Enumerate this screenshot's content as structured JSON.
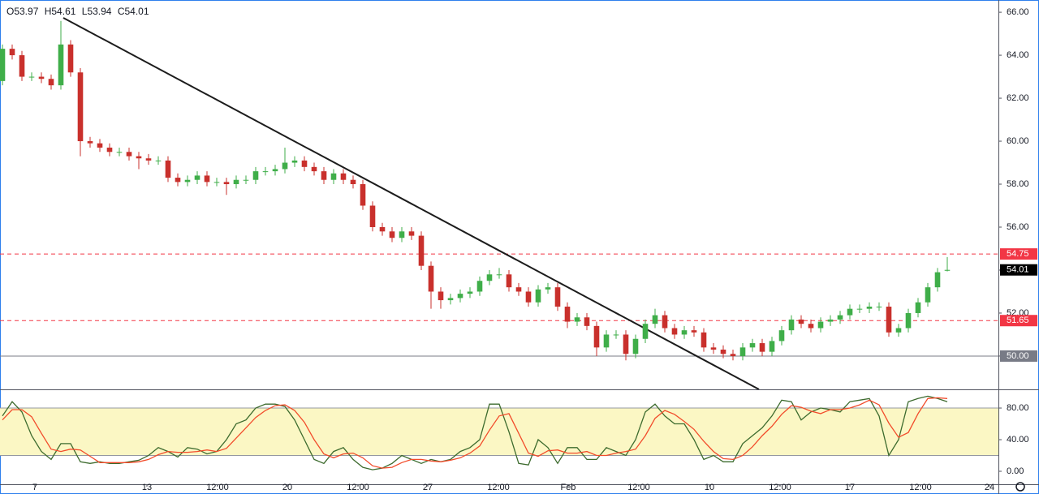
{
  "chart_data": {
    "type": "candlestick",
    "header": [
      "O53.97",
      "H54.61",
      "L53.94",
      "C54.01"
    ],
    "up_color": "#3fae49",
    "down_color": "#c9302c",
    "open": [
      62.8,
      64.3,
      64.0,
      63.0,
      63.0,
      62.9,
      62.6,
      64.5,
      63.2,
      60.0,
      59.9,
      59.7,
      59.5,
      59.5,
      59.3,
      59.2,
      59.1,
      59.1,
      58.3,
      58.1,
      58.2,
      58.4,
      58.1,
      58.1,
      58.0,
      58.2,
      58.2,
      58.6,
      58.6,
      58.7,
      59.0,
      59.1,
      58.8,
      58.6,
      58.2,
      58.5,
      58.2,
      58.0,
      57.0,
      56.0,
      55.8,
      55.5,
      55.8,
      55.6,
      54.2,
      53.0,
      52.6,
      52.7,
      52.9,
      53.0,
      53.5,
      53.8,
      53.8,
      53.2,
      53.0,
      52.5,
      53.1,
      53.2,
      52.3,
      51.6,
      51.8,
      51.4,
      50.4,
      51.0,
      51.0,
      50.1,
      50.8,
      51.5,
      51.9,
      51.3,
      51.0,
      51.2,
      51.1,
      50.4,
      50.3,
      50.1,
      50.0,
      50.4,
      50.6,
      50.2,
      50.7,
      51.2,
      51.7,
      51.5,
      51.3,
      51.6,
      51.7,
      51.9,
      52.2,
      52.2,
      52.3,
      52.3,
      51.1,
      51.3,
      52.0,
      52.5,
      53.2,
      53.97
    ],
    "high": [
      64.5,
      64.5,
      64.2,
      63.2,
      63.2,
      63.1,
      65.6,
      64.7,
      63.4,
      60.2,
      60.1,
      59.9,
      59.7,
      59.7,
      59.5,
      59.4,
      59.3,
      59.3,
      58.5,
      58.4,
      58.6,
      58.6,
      58.3,
      58.3,
      58.4,
      58.4,
      58.8,
      58.8,
      58.9,
      59.7,
      59.3,
      59.3,
      59.0,
      58.8,
      58.7,
      58.7,
      58.4,
      58.2,
      57.2,
      56.2,
      56.0,
      56.0,
      56.0,
      55.8,
      54.4,
      53.2,
      52.9,
      53.1,
      53.2,
      53.7,
      54.0,
      54.1,
      54.0,
      53.4,
      53.2,
      53.3,
      53.4,
      53.4,
      52.5,
      52.0,
      52.0,
      51.6,
      51.2,
      51.2,
      51.2,
      51.0,
      51.7,
      52.2,
      52.1,
      51.5,
      51.4,
      51.4,
      51.3,
      50.6,
      50.5,
      50.3,
      50.6,
      50.8,
      50.8,
      50.9,
      51.4,
      51.9,
      51.9,
      51.7,
      51.8,
      51.9,
      52.1,
      52.4,
      52.4,
      52.5,
      52.5,
      52.5,
      51.5,
      52.2,
      52.7,
      53.4,
      54.1,
      54.61
    ],
    "low": [
      62.6,
      63.8,
      62.8,
      62.8,
      62.7,
      62.4,
      62.4,
      63.0,
      59.3,
      59.7,
      59.5,
      59.3,
      59.3,
      59.1,
      58.7,
      58.9,
      58.9,
      58.1,
      57.9,
      57.9,
      58.0,
      57.9,
      57.9,
      57.5,
      57.8,
      58.0,
      58.0,
      58.4,
      58.4,
      58.5,
      58.8,
      58.6,
      58.4,
      58.0,
      58.0,
      58.0,
      57.8,
      56.8,
      55.8,
      55.6,
      55.3,
      55.3,
      55.4,
      54.0,
      52.2,
      52.2,
      52.4,
      52.5,
      52.7,
      52.8,
      53.3,
      53.6,
      53.0,
      52.8,
      52.3,
      52.3,
      52.9,
      52.1,
      51.3,
      51.4,
      51.2,
      50.0,
      50.2,
      50.8,
      49.8,
      49.9,
      50.6,
      51.3,
      51.1,
      50.8,
      50.8,
      50.9,
      50.2,
      50.1,
      49.9,
      49.8,
      49.8,
      50.2,
      50.0,
      50.0,
      50.5,
      51.0,
      51.3,
      51.1,
      51.1,
      51.4,
      51.5,
      51.7,
      52.0,
      52.0,
      52.1,
      50.9,
      50.9,
      51.1,
      51.8,
      52.3,
      53.0,
      53.94
    ],
    "close": [
      64.3,
      64.0,
      63.0,
      63.0,
      62.9,
      62.6,
      64.5,
      63.2,
      60.0,
      59.9,
      59.7,
      59.5,
      59.5,
      59.3,
      59.2,
      59.1,
      59.1,
      58.3,
      58.1,
      58.2,
      58.4,
      58.1,
      58.1,
      58.0,
      58.2,
      58.2,
      58.6,
      58.6,
      58.7,
      59.0,
      59.1,
      58.8,
      58.6,
      58.2,
      58.5,
      58.2,
      58.0,
      57.0,
      56.0,
      55.8,
      55.5,
      55.8,
      55.6,
      54.2,
      53.0,
      52.6,
      52.7,
      52.9,
      53.0,
      53.5,
      53.8,
      53.8,
      53.2,
      53.0,
      52.5,
      53.1,
      53.2,
      52.3,
      51.6,
      51.8,
      51.4,
      50.4,
      51.0,
      51.0,
      50.1,
      50.8,
      51.5,
      51.9,
      51.3,
      51.0,
      51.2,
      51.1,
      50.4,
      50.3,
      50.1,
      50.0,
      50.4,
      50.6,
      50.2,
      50.7,
      51.2,
      51.7,
      51.5,
      51.3,
      51.6,
      51.7,
      51.9,
      52.2,
      52.2,
      52.3,
      52.3,
      51.1,
      51.3,
      52.0,
      52.5,
      53.2,
      53.9,
      54.01
    ],
    "xlim": [
      -0.25,
      102.25
    ],
    "xticks": [
      {
        "value": 3.33,
        "label": "7"
      },
      {
        "value": 14.83,
        "label": "13"
      },
      {
        "value": 22.08,
        "label": "12:00"
      },
      {
        "value": 29.25,
        "label": "20"
      },
      {
        "value": 36.5,
        "label": "12:00"
      },
      {
        "value": 43.67,
        "label": "27"
      },
      {
        "value": 50.92,
        "label": "12:00"
      },
      {
        "value": 58.08,
        "label": "Feb"
      },
      {
        "value": 65.33,
        "label": "12:00"
      },
      {
        "value": 72.58,
        "label": "10"
      },
      {
        "value": 79.83,
        "label": "12:00"
      },
      {
        "value": 87.0,
        "label": "17"
      },
      {
        "value": 94.25,
        "label": "12:00"
      },
      {
        "value": 101.33,
        "label": "24"
      }
    ],
    "ylim": [
      48.45,
      66.57
    ],
    "yticks": [
      {
        "value": 50,
        "label": "50.00"
      },
      {
        "value": 52,
        "label": "52.00"
      },
      {
        "value": 54,
        "label": "54.00"
      },
      {
        "value": 56,
        "label": "56.00"
      },
      {
        "value": 58,
        "label": "58.00"
      },
      {
        "value": 60,
        "label": "60.00"
      },
      {
        "value": 62,
        "label": "62.00"
      },
      {
        "value": 64,
        "label": "64.00"
      },
      {
        "value": 66,
        "label": "66.00"
      }
    ],
    "trendline": {
      "x": [
        6.25,
        77.67
      ],
      "y": [
        65.74,
        48.45
      ],
      "color": "#1c1c1c"
    },
    "levels": [
      {
        "value": 54.75,
        "label": "54.75",
        "color": "#f23645",
        "dashed": true
      },
      {
        "value": 51.65,
        "label": "51.65",
        "color": "#f23645",
        "dashed": true
      },
      {
        "value": 50,
        "label": "50.00",
        "color": "#787b86",
        "dashed": false
      }
    ],
    "last_price": {
      "value": 54.01,
      "label": "54.01",
      "color": "#000000"
    },
    "indicator": {
      "type": "stochastic",
      "ylim": [
        -16.4,
        102.6
      ],
      "yticks": [
        {
          "value": 0,
          "label": "0.00"
        },
        {
          "value": 40,
          "label": "40.00"
        },
        {
          "value": 80,
          "label": "80.00"
        }
      ],
      "band": [
        20,
        80
      ],
      "band_color": "#fbf7c4",
      "series": [
        {
          "color": "#3d6b2e",
          "values": [
            70,
            88,
            75,
            45,
            25,
            15,
            35,
            35,
            12,
            10,
            12,
            10,
            10,
            12,
            14,
            20,
            30,
            25,
            18,
            30,
            28,
            22,
            25,
            40,
            60,
            65,
            80,
            85,
            85,
            82,
            65,
            40,
            15,
            10,
            25,
            30,
            15,
            5,
            2,
            4,
            10,
            20,
            15,
            10,
            15,
            12,
            15,
            25,
            30,
            40,
            85,
            85,
            50,
            10,
            8,
            40,
            30,
            10,
            30,
            30,
            15,
            15,
            30,
            25,
            20,
            40,
            75,
            85,
            70,
            60,
            60,
            40,
            15,
            20,
            12,
            12,
            35,
            45,
            55,
            70,
            90,
            88,
            65,
            75,
            80,
            78,
            75,
            88,
            90,
            92,
            70,
            20,
            40,
            88,
            92,
            95,
            92,
            88
          ]
        },
        {
          "color": "#f24c2b",
          "values": [
            65,
            78,
            78,
            69,
            48,
            28,
            25,
            28,
            27,
            19,
            11,
            11,
            11,
            11,
            12,
            15,
            21,
            25,
            24,
            24,
            25,
            27,
            25,
            29,
            42,
            55,
            68,
            77,
            83,
            84,
            77,
            62,
            40,
            22,
            17,
            22,
            23,
            17,
            7,
            4,
            5,
            11,
            15,
            15,
            13,
            12,
            14,
            17,
            23,
            32,
            52,
            70,
            73,
            48,
            23,
            19,
            26,
            27,
            23,
            23,
            25,
            20,
            20,
            23,
            25,
            28,
            45,
            67,
            77,
            72,
            63,
            53,
            38,
            25,
            16,
            15,
            20,
            31,
            45,
            57,
            72,
            83,
            81,
            76,
            73,
            78,
            78,
            80,
            84,
            90,
            84,
            61,
            43,
            49,
            73,
            92,
            93,
            92
          ]
        }
      ]
    }
  }
}
